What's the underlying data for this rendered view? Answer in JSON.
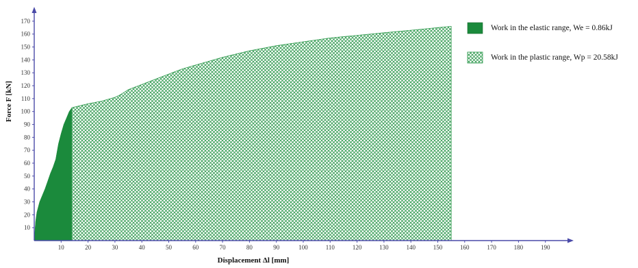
{
  "chart_data": {
    "type": "area",
    "xlabel": "Displacement Δl [mm]",
    "ylabel": "Force F [kN]",
    "xlim": [
      0,
      200
    ],
    "ylim": [
      0,
      175
    ],
    "x_ticks": [
      10,
      20,
      30,
      40,
      50,
      60,
      70,
      80,
      90,
      100,
      110,
      120,
      130,
      140,
      150,
      160,
      170,
      180,
      190
    ],
    "y_ticks": [
      10,
      20,
      30,
      40,
      50,
      60,
      70,
      80,
      90,
      100,
      110,
      120,
      130,
      140,
      150,
      160,
      170
    ],
    "grid": false,
    "legend_position": "right",
    "colors": {
      "elastic_fill": "#1b8a3c",
      "plastic_hatch": "#2f9a4e",
      "axis": "#4a4aa8"
    },
    "series": [
      {
        "name": "Work in the elastic range, We = 0.86kJ",
        "fill": "solid",
        "x": [
          0,
          0.5,
          1,
          2,
          3,
          4,
          5,
          6,
          7,
          8,
          9,
          10,
          11,
          12,
          13,
          14
        ],
        "y": [
          0,
          15,
          22,
          30,
          35,
          40,
          46,
          52,
          57,
          63,
          75,
          83,
          90,
          95,
          100,
          103
        ]
      },
      {
        "name": "Work in the plastic range, Wp = 20.58kJ",
        "fill": "hatched",
        "x": [
          14,
          20,
          25,
          30,
          32,
          35,
          40,
          45,
          50,
          55,
          60,
          70,
          80,
          90,
          100,
          110,
          120,
          130,
          140,
          150,
          155
        ],
        "y": [
          103,
          106,
          108,
          111,
          113,
          117,
          121,
          125,
          129,
          133,
          136,
          142,
          147,
          151,
          154,
          157,
          159,
          161,
          163,
          165,
          166
        ]
      }
    ]
  }
}
